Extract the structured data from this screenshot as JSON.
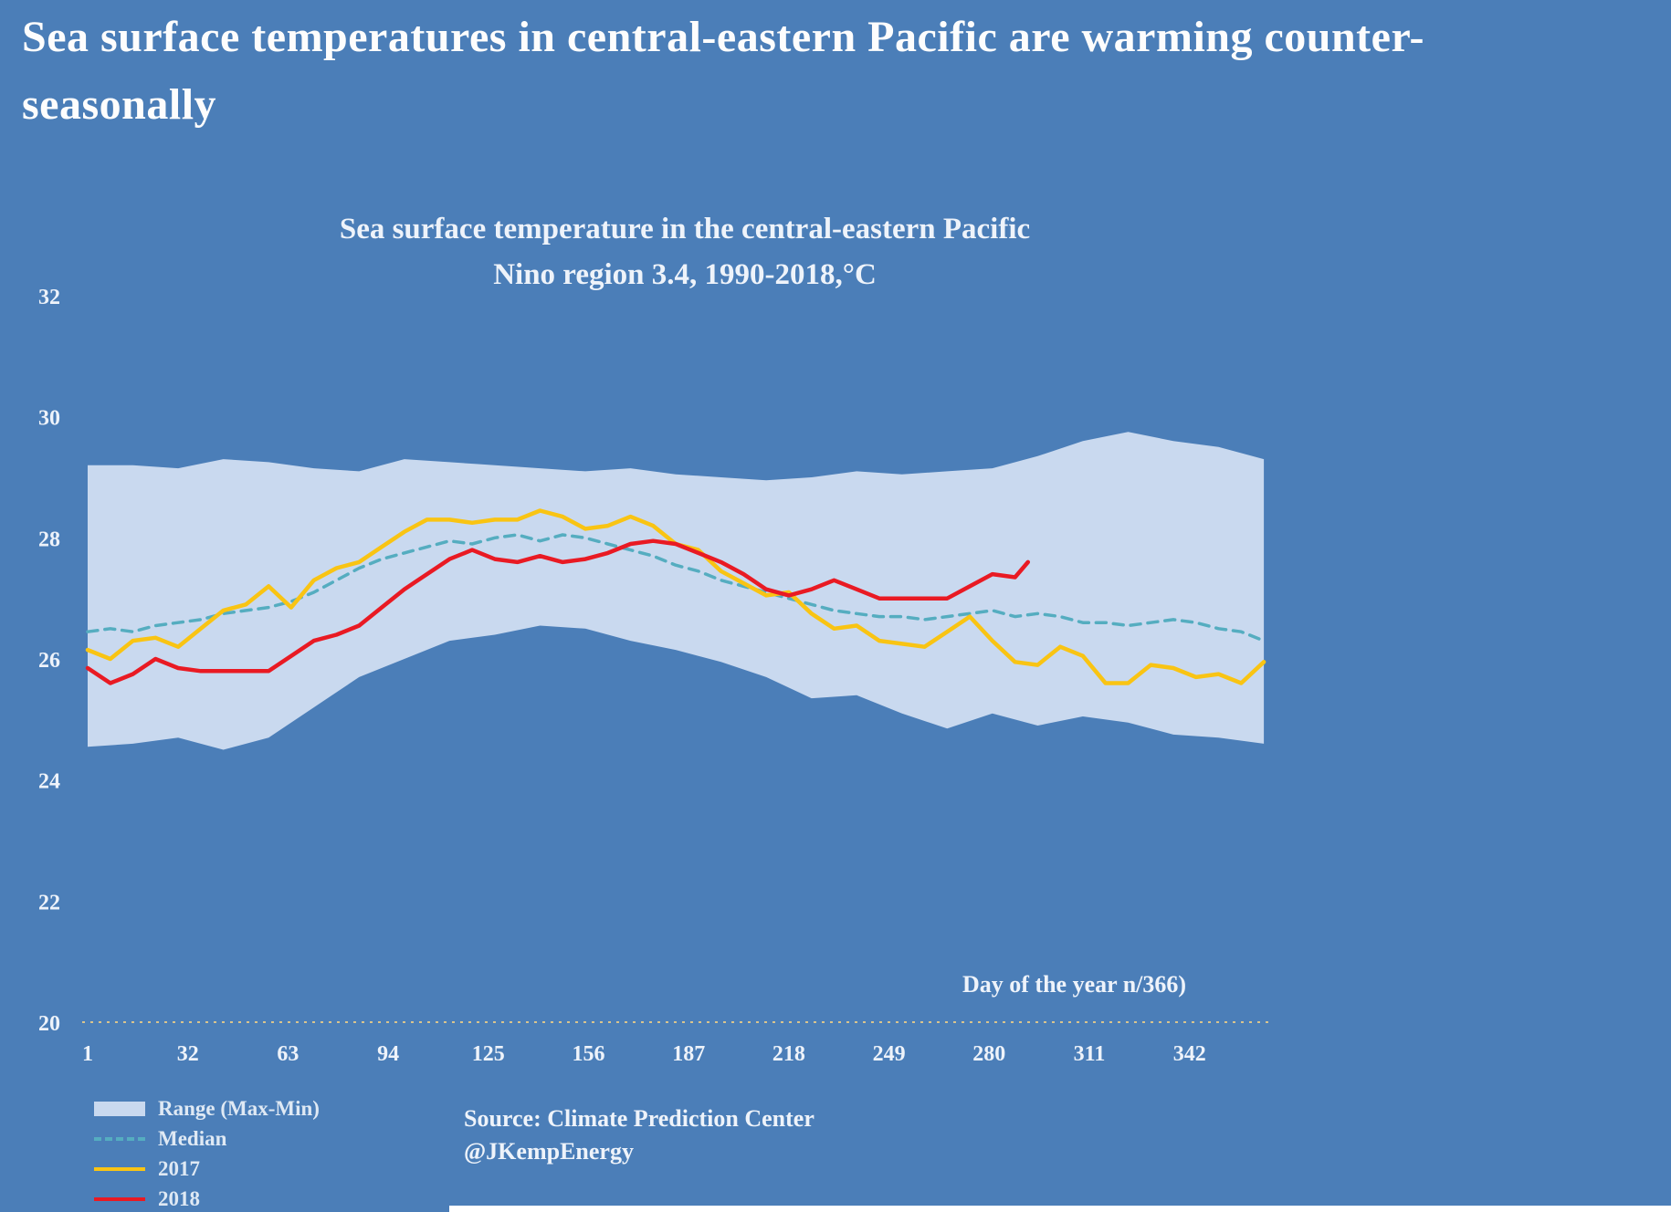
{
  "colors": {
    "background": "#4b7eb8",
    "range_band": "#c9d9ef",
    "median": "#55adc0",
    "line_2017": "#f9c413",
    "line_2018": "#e91a23",
    "text": "#eef3fa"
  },
  "header": {
    "line1": "Sea surface temperatures in central-eastern Pacific are warming counter-",
    "line2": "seasonally"
  },
  "chart": {
    "title_line1": "Sea surface temperature in the central-eastern Pacific",
    "title_line2": "Nino region 3.4, 1990-2018,°C",
    "x_caption": "Day of the year n/366)"
  },
  "legend": {
    "range": "Range (Max-Min)",
    "median": "Median",
    "y2017": "2017",
    "y2018": "2018"
  },
  "source": {
    "line1": "Source: Climate Prediction Center",
    "line2": "@JKempEnergy"
  },
  "chart_data": {
    "type": "line",
    "title": "Sea surface temperature in the central-eastern Pacific Nino region 3.4, 1990-2018,°C",
    "xlabel": "Day of the year n/366)",
    "ylabel": "°C",
    "xlim": [
      1,
      366
    ],
    "ylim": [
      20,
      32
    ],
    "xticks": [
      1,
      32,
      63,
      94,
      125,
      156,
      187,
      218,
      249,
      280,
      311,
      342
    ],
    "yticks": [
      20,
      22,
      24,
      26,
      28,
      30,
      32
    ],
    "grid": false,
    "legend_position": "bottom-left",
    "range_band": {
      "name": "Range (Max-Min)",
      "color": "#c9d9ef",
      "x": [
        1,
        15,
        29,
        43,
        57,
        71,
        85,
        99,
        113,
        127,
        141,
        155,
        169,
        183,
        197,
        211,
        225,
        239,
        253,
        267,
        281,
        295,
        309,
        323,
        337,
        351,
        365
      ],
      "max": [
        29.2,
        29.2,
        29.15,
        29.3,
        29.25,
        29.15,
        29.1,
        29.3,
        29.25,
        29.2,
        29.15,
        29.1,
        29.15,
        29.05,
        29.0,
        28.95,
        29.0,
        29.1,
        29.05,
        29.1,
        29.15,
        29.35,
        29.6,
        29.75,
        29.6,
        29.5,
        29.3
      ],
      "min": [
        24.55,
        24.6,
        24.7,
        24.5,
        24.7,
        25.2,
        25.7,
        26.0,
        26.3,
        26.4,
        26.55,
        26.5,
        26.3,
        26.15,
        25.95,
        25.7,
        25.35,
        25.4,
        25.1,
        24.85,
        25.1,
        24.9,
        25.05,
        24.95,
        24.75,
        24.7,
        24.6
      ]
    },
    "series": [
      {
        "name": "Median",
        "color": "#55adc0",
        "style": "dashed",
        "x": [
          1,
          8,
          15,
          22,
          29,
          36,
          43,
          50,
          57,
          64,
          71,
          78,
          85,
          92,
          99,
          106,
          113,
          120,
          127,
          134,
          141,
          148,
          155,
          162,
          169,
          176,
          183,
          190,
          197,
          204,
          211,
          218,
          225,
          232,
          239,
          246,
          253,
          260,
          267,
          274,
          281,
          288,
          295,
          302,
          309,
          316,
          323,
          330,
          337,
          344,
          351,
          358,
          365
        ],
        "values": [
          26.45,
          26.5,
          26.45,
          26.55,
          26.6,
          26.65,
          26.75,
          26.8,
          26.85,
          26.95,
          27.1,
          27.3,
          27.5,
          27.65,
          27.75,
          27.85,
          27.95,
          27.9,
          28.0,
          28.05,
          27.95,
          28.05,
          28.0,
          27.9,
          27.8,
          27.7,
          27.55,
          27.45,
          27.3,
          27.2,
          27.1,
          27.0,
          26.9,
          26.8,
          26.75,
          26.7,
          26.7,
          26.65,
          26.7,
          26.75,
          26.8,
          26.7,
          26.75,
          26.7,
          26.6,
          26.6,
          26.55,
          26.6,
          26.65,
          26.6,
          26.5,
          26.45,
          26.3
        ]
      },
      {
        "name": "2017",
        "color": "#f9c413",
        "style": "solid",
        "x": [
          1,
          8,
          15,
          22,
          29,
          36,
          43,
          50,
          57,
          64,
          71,
          78,
          85,
          92,
          99,
          106,
          113,
          120,
          127,
          134,
          141,
          148,
          155,
          162,
          169,
          176,
          183,
          190,
          197,
          204,
          211,
          218,
          225,
          232,
          239,
          246,
          253,
          260,
          267,
          274,
          281,
          288,
          295,
          302,
          309,
          316,
          323,
          330,
          337,
          344,
          351,
          358,
          365
        ],
        "values": [
          26.15,
          26.0,
          26.3,
          26.35,
          26.2,
          26.5,
          26.8,
          26.9,
          27.2,
          26.85,
          27.3,
          27.5,
          27.6,
          27.85,
          28.1,
          28.3,
          28.3,
          28.25,
          28.3,
          28.3,
          28.45,
          28.35,
          28.15,
          28.2,
          28.35,
          28.2,
          27.9,
          27.8,
          27.45,
          27.25,
          27.05,
          27.1,
          26.75,
          26.5,
          26.55,
          26.3,
          26.25,
          26.2,
          26.45,
          26.7,
          26.3,
          25.95,
          25.9,
          26.2,
          26.05,
          25.6,
          25.6,
          25.9,
          25.85,
          25.7,
          25.75,
          25.6,
          25.95
        ]
      },
      {
        "name": "2018",
        "color": "#e91a23",
        "style": "solid",
        "x": [
          1,
          8,
          15,
          22,
          29,
          36,
          43,
          50,
          57,
          64,
          71,
          78,
          85,
          92,
          99,
          106,
          113,
          120,
          127,
          134,
          141,
          148,
          155,
          162,
          169,
          176,
          183,
          190,
          197,
          204,
          211,
          218,
          225,
          232,
          239,
          246,
          253,
          260,
          267,
          274,
          281,
          288,
          292
        ],
        "values": [
          25.85,
          25.6,
          25.75,
          26.0,
          25.85,
          25.8,
          25.8,
          25.8,
          25.8,
          26.05,
          26.3,
          26.4,
          26.55,
          26.85,
          27.15,
          27.4,
          27.65,
          27.8,
          27.65,
          27.6,
          27.7,
          27.6,
          27.65,
          27.75,
          27.9,
          27.95,
          27.9,
          27.75,
          27.6,
          27.4,
          27.15,
          27.05,
          27.15,
          27.3,
          27.15,
          27.0,
          27.0,
          27.0,
          27.0,
          27.2,
          27.4,
          27.35,
          27.6
        ]
      }
    ]
  }
}
